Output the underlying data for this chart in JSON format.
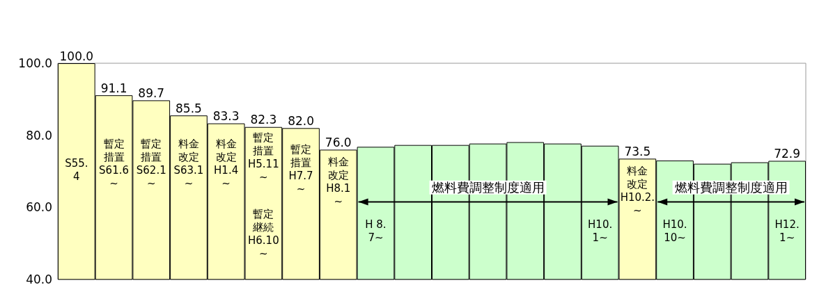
{
  "chart_data": {
    "type": "bar",
    "categories": [
      null,
      null,
      null,
      null,
      null,
      null,
      null,
      null,
      null,
      null,
      null,
      null,
      null,
      null,
      null,
      null,
      null,
      null,
      null,
      null
    ],
    "values": [
      100.0,
      91.1,
      89.7,
      85.5,
      83.3,
      82.3,
      82.0,
      76.0,
      76.8,
      77.3,
      77.3,
      77.7,
      78.1,
      77.7,
      77.1,
      73.5,
      73.0,
      72.1,
      72.5,
      72.9
    ],
    "colors": [
      "#ffffc0",
      "#ffffc0",
      "#ffffc0",
      "#ffffc0",
      "#ffffc0",
      "#ffffc0",
      "#ffffc0",
      "#ffffc0",
      "#ccffcc",
      "#ccffcc",
      "#ccffcc",
      "#ccffcc",
      "#ccffcc",
      "#ccffcc",
      "#ccffcc",
      "#ffffc0",
      "#ccffcc",
      "#ccffcc",
      "#ccffcc",
      "#ccffcc"
    ],
    "value_labels": [
      "100.0",
      "91.1",
      "89.7",
      "85.5",
      "83.3",
      "82.3",
      "82.0",
      "76.0",
      null,
      null,
      null,
      null,
      null,
      null,
      null,
      "73.5",
      null,
      null,
      null,
      "72.9"
    ],
    "ylim": [
      40,
      100
    ],
    "yticks": [
      {
        "value": 40,
        "label": "40.0"
      },
      {
        "value": 60,
        "label": "60.0"
      },
      {
        "value": 80,
        "label": "80.0"
      },
      {
        "value": 100,
        "label": "100.0"
      }
    ],
    "tick_labels": "y",
    "grid": false,
    "annotations": [
      "S55.\n4",
      "暫定措置\nS61.6\n~",
      "暫定措置\nS62.1\n~",
      "料金改定\nS63.1\n~",
      "料金改定\nH1.4\n~",
      "暫定措置\nH5.11\n~",
      "暫定継続\nH6.10\n~",
      "暫定措置\nH7.7\n~",
      "料金改定\nH8.1\n~",
      "燃料費調整制度適用",
      "H 8.\n7~",
      "H10.\n1~",
      "料金改定\nH10.2.\n~",
      "燃料費調整制度適用",
      "H10.\n10~",
      "H12.\n1~"
    ]
  }
}
